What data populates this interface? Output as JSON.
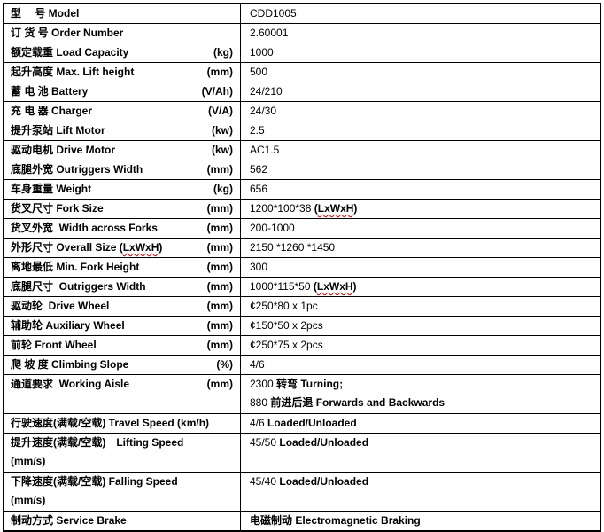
{
  "page": {
    "kind": "product-specification-table",
    "colors": {
      "background": "#ffffff",
      "text": "#000000",
      "table_border": "#000000",
      "spellcheck_wavy": "#c80000"
    }
  },
  "table": {
    "rows": [
      {
        "label": [
          {
            "t": "型　 号 Model"
          }
        ],
        "unit": "",
        "value": [
          {
            "t": "CDD1005"
          }
        ]
      },
      {
        "label": [
          {
            "t": "订 货 号 Order Number"
          }
        ],
        "unit": "",
        "value": [
          {
            "t": "2.60001"
          }
        ]
      },
      {
        "label": [
          {
            "t": "额定载重 Load Capacity"
          }
        ],
        "unit": "(kg)",
        "value": [
          {
            "t": "1000"
          }
        ]
      },
      {
        "label": [
          {
            "t": "起升高度 Max. Lift height"
          }
        ],
        "unit": "(mm)",
        "value": [
          {
            "t": "500"
          }
        ]
      },
      {
        "label": [
          {
            "t": "蓄 电 池 Battery"
          }
        ],
        "unit": "(V/Ah)",
        "value": [
          {
            "t": "24/210"
          }
        ]
      },
      {
        "label": [
          {
            "t": "充 电 器 Charger"
          }
        ],
        "unit": "(V/A)",
        "value": [
          {
            "t": "24/30"
          }
        ]
      },
      {
        "label": [
          {
            "t": "提升泵站 Lift Motor"
          }
        ],
        "unit": "(kw)",
        "value": [
          {
            "t": "2.5"
          }
        ]
      },
      {
        "label": [
          {
            "t": "驱动电机 Drive Motor"
          }
        ],
        "unit": "(kw)",
        "value": [
          {
            "t": "AC1.5"
          }
        ]
      },
      {
        "label": [
          {
            "t": "底腿外宽 Outriggers Width"
          }
        ],
        "unit": "(mm)",
        "value": [
          {
            "t": "562"
          }
        ]
      },
      {
        "label": [
          {
            "t": "车身重量 Weight"
          }
        ],
        "unit": "(kg)",
        "value": [
          {
            "t": "656"
          }
        ]
      },
      {
        "label": [
          {
            "t": "货叉尺寸 Fork Size"
          }
        ],
        "unit": "(mm)",
        "value": [
          {
            "t": "1200*100*38 "
          },
          {
            "t": "(",
            "b": true
          },
          {
            "t": "LxWxH",
            "b": true,
            "wavy": true
          },
          {
            "t": ")",
            "b": true
          }
        ]
      },
      {
        "label": [
          {
            "t": "货叉外宽  Width across Forks"
          }
        ],
        "unit": "(mm)",
        "value": [
          {
            "t": "200-1000"
          }
        ]
      },
      {
        "label": [
          {
            "t": "外形尺寸 Overall Size ("
          },
          {
            "t": "LxWxH",
            "wavy": true
          },
          {
            "t": ")"
          }
        ],
        "unit": "(mm)",
        "value": [
          {
            "t": "2150 *1260 *1450"
          }
        ]
      },
      {
        "label": [
          {
            "t": "离地最低 Min. Fork Height"
          }
        ],
        "unit": "(mm)",
        "value": [
          {
            "t": "300"
          }
        ]
      },
      {
        "label": [
          {
            "t": "底腿尺寸  Outriggers Width"
          }
        ],
        "unit": "(mm)",
        "value": [
          {
            "t": "1000*115*50 "
          },
          {
            "t": "(",
            "b": true
          },
          {
            "t": "LxWxH",
            "b": true,
            "wavy": true
          },
          {
            "t": ")",
            "b": true
          }
        ]
      },
      {
        "label": [
          {
            "t": "驱动轮  Drive Wheel"
          }
        ],
        "unit": "(mm)",
        "value": [
          {
            "t": "¢250*80 x 1pc"
          }
        ]
      },
      {
        "label": [
          {
            "t": "辅助轮 Auxiliary Wheel"
          }
        ],
        "unit": "(mm)",
        "value": [
          {
            "t": "¢150*50 x 2pcs"
          }
        ]
      },
      {
        "label": [
          {
            "t": "前轮 Front Wheel"
          }
        ],
        "unit": "(mm)",
        "value": [
          {
            "t": "¢250*75 x 2pcs"
          }
        ]
      },
      {
        "label": [
          {
            "t": "爬 坡 度 Climbing Slope"
          }
        ],
        "unit": "(%)",
        "value": [
          {
            "t": "4/6"
          }
        ]
      },
      {
        "label": [
          {
            "t": "通道要求  Working Aisle"
          }
        ],
        "unit": "(mm)",
        "value": [
          {
            "t": "2300 "
          },
          {
            "t": "转弯 Turning;",
            "b": true
          }
        ],
        "value2": [
          {
            "t": "880 "
          },
          {
            "t": "前进后退 Forwards and Backwards",
            "b": true
          }
        ]
      },
      {
        "label": [
          {
            "t": "行驶速度(满载/空载) Travel Speed (km/h)"
          }
        ],
        "unit": "",
        "value": [
          {
            "t": "4/6 "
          },
          {
            "t": "Loaded/Unloaded",
            "b": true
          }
        ]
      },
      {
        "label": [
          {
            "t": "提升速度(满载/空载)　Lifting Speed"
          }
        ],
        "label2": "(mm/s)",
        "unit": "",
        "value": [
          {
            "t": "45/50 "
          },
          {
            "t": "Loaded/Unloaded",
            "b": true
          }
        ]
      },
      {
        "label": [
          {
            "t": "下降速度(满载/空载) Falling Speed"
          }
        ],
        "label2": "(mm/s)",
        "unit": "",
        "value": [
          {
            "t": "45/40 "
          },
          {
            "t": "Loaded/Unloaded",
            "b": true
          }
        ]
      },
      {
        "label": [
          {
            "t": "制动方式 Service Brake"
          }
        ],
        "unit": "",
        "value": [
          {
            "t": "电磁制动 Electromagnetic Braking",
            "b": true
          }
        ]
      }
    ]
  }
}
